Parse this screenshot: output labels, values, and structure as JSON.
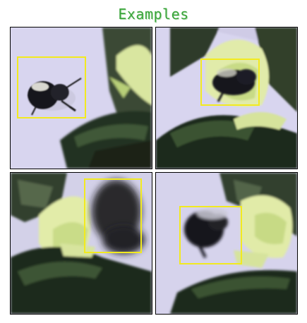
{
  "page": {
    "title": "Examples"
  },
  "colors": {
    "title_text": "#3aa53a",
    "box_outline": "#f2ea1f",
    "sky": "#d7d4ee",
    "leaf_dark": "#243322",
    "flower": "#dfe9a8",
    "bee": "#17171c"
  },
  "examples": [
    {
      "subject": "bee-in-flight-left"
    },
    {
      "subject": "bee-on-flower"
    },
    {
      "subject": "blurred-bee-closeup"
    },
    {
      "subject": "bee-approaching-flower"
    }
  ]
}
